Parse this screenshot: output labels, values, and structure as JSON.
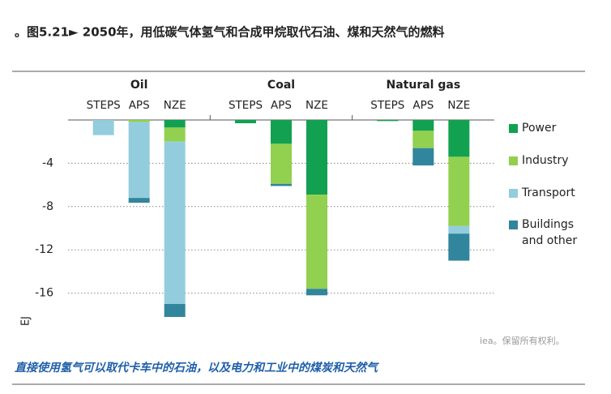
{
  "chart_data": {
    "type": "bar",
    "stacked": true,
    "title": "。图5.21► 2050年，用低碳气体氢气和合成甲烷取代石油、煤和天然气的燃料",
    "caption": "直接使用氢气可以取代卡车中的石油，以及电力和工业中的煤炭和天然气",
    "watermark": "iea。保留所有权利。",
    "y_label": "EJ",
    "groups": [
      "Oil",
      "Coal",
      "Natural gas"
    ],
    "categories": [
      "STEPS",
      "APS",
      "NZE",
      "STEPS",
      "APS",
      "NZE",
      "STEPS",
      "APS",
      "NZE"
    ],
    "series": [
      {
        "name": "Power",
        "color": "#12a150",
        "values": [
          0,
          0,
          -0.7,
          -0.3,
          -2.2,
          -6.9,
          -0.1,
          -1.0,
          -3.4
        ]
      },
      {
        "name": "Industry",
        "color": "#92d050",
        "values": [
          0,
          -0.2,
          -1.3,
          0,
          -3.7,
          -8.7,
          0,
          -1.6,
          -6.4
        ]
      },
      {
        "name": "Transport",
        "color": "#93cddd",
        "values": [
          -1.4,
          -7.0,
          -15.0,
          0,
          0,
          0,
          0,
          0,
          -0.7
        ]
      },
      {
        "name": "Buildings and other",
        "color": "#31859c",
        "values": [
          0,
          -0.45,
          -1.2,
          0,
          -0.2,
          -0.6,
          0,
          -1.6,
          -2.5
        ]
      }
    ],
    "ylim": [
      -20,
      0
    ],
    "yticks": [
      -4,
      -8,
      -12,
      -16
    ],
    "grid": true
  }
}
